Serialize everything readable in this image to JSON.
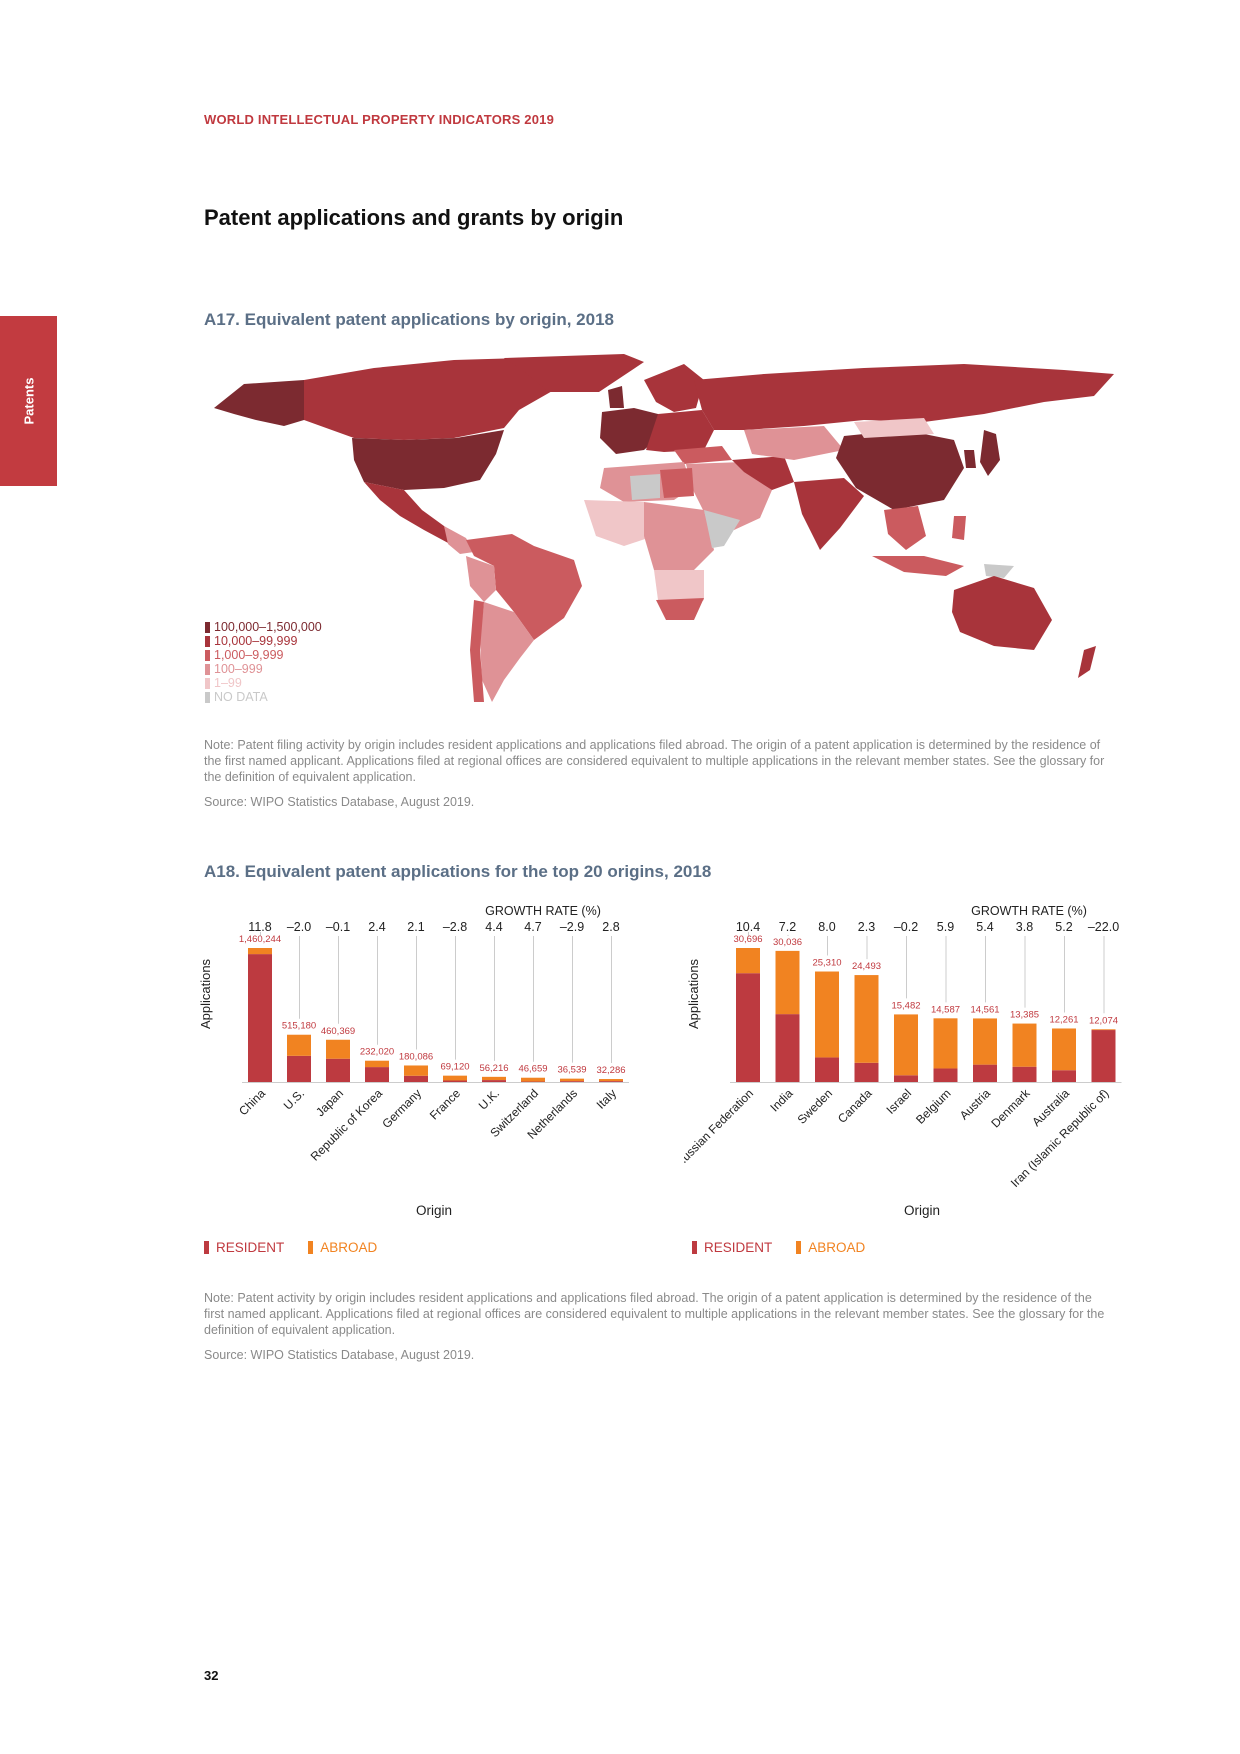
{
  "header": {
    "running_title": "WORLD INTELLECTUAL PROPERTY INDICATORS 2019",
    "side_tab": "Patents"
  },
  "section_title": "Patent applications and grants by origin",
  "map_figure": {
    "title": "A17. Equivalent patent applications by origin, 2018",
    "legend": [
      {
        "label": "100,000–1,500,000",
        "color": "#7c2a30"
      },
      {
        "label": "10,000–99,999",
        "color": "#a8343b"
      },
      {
        "label": "1,000–9,999",
        "color": "#cb5b5f"
      },
      {
        "label": "100–999",
        "color": "#df9296"
      },
      {
        "label": "1–99",
        "color": "#f0c6c8"
      },
      {
        "label": "NO DATA",
        "color": "#c9c9c9"
      }
    ],
    "note": "Note: Patent filing activity by origin includes resident applications and applications filed abroad. The origin of a patent application is determined by the residence of the first named applicant. Applications filed at regional offices are considered equivalent to multiple applications in the relevant member states. See the glossary for the definition of equivalent application.",
    "source": "Source: WIPO Statistics Database, August 2019."
  },
  "bars_figure": {
    "title": "A18. Equivalent patent applications for the top 20 origins, 2018",
    "note": "Note: Patent activity by origin includes resident applications and applications filed abroad. The origin of a patent application is determined by the residence of the first named applicant. Applications filed at regional offices are considered equivalent to multiple applications in the relevant member states. See the glossary for the definition of equivalent application.",
    "source": "Source: WIPO Statistics Database, August 2019.",
    "legend": {
      "resident": "RESIDENT",
      "abroad": "ABROAD"
    }
  },
  "chart_data": [
    {
      "type": "bar",
      "stacked": true,
      "xlabel": "Origin",
      "ylabel": "Applications",
      "growth_label": "GROWTH RATE (%)",
      "categories": [
        "China",
        "U.S.",
        "Japan",
        "Republic of Korea",
        "Germany",
        "France",
        "U.K.",
        "Switzerland",
        "Netherlands",
        "Italy"
      ],
      "totals": [
        "1,460,244",
        "515,180",
        "460,369",
        "232,020",
        "180,086",
        "69,120",
        "56,216",
        "46,659",
        "36,539",
        "32,286"
      ],
      "total_values": [
        1460244,
        515180,
        460369,
        232020,
        180086,
        69120,
        56216,
        46659,
        36539,
        32286
      ],
      "growth": [
        "11.8",
        "–2.0",
        "–0.1",
        "2.4",
        "2.1",
        "–2.8",
        "4.4",
        "4.7",
        "–2.9",
        "2.8"
      ],
      "series": [
        {
          "name": "RESIDENT",
          "color": "#bd3a40",
          "values": [
            1393815,
            285095,
            253630,
            162561,
            67895,
            16222,
            20941,
            5000,
            9520,
            9800
          ]
        },
        {
          "name": "ABROAD",
          "color": "#f18321",
          "values": [
            66429,
            230085,
            206739,
            69459,
            112191,
            52898,
            35275,
            41659,
            27019,
            22486
          ]
        }
      ]
    },
    {
      "type": "bar",
      "stacked": true,
      "xlabel": "Origin",
      "ylabel": "Applications",
      "growth_label": "GROWTH RATE (%)",
      "categories": [
        "Russian Federation",
        "India",
        "Sweden",
        "Canada",
        "Israel",
        "Belgium",
        "Austria",
        "Denmark",
        "Australia",
        "Iran (Islamic Republic of)"
      ],
      "totals": [
        "30,696",
        "30,036",
        "25,310",
        "24,493",
        "15,482",
        "14,587",
        "14,561",
        "13,385",
        "12,261",
        "12,074"
      ],
      "total_values": [
        30696,
        30036,
        25310,
        24493,
        15482,
        14587,
        14561,
        13385,
        12261,
        12074
      ],
      "growth": [
        "10.4",
        "7.2",
        "8.0",
        "2.3",
        "–0.2",
        "5.9",
        "5.4",
        "3.8",
        "5.2",
        "–22.0"
      ],
      "series": [
        {
          "name": "RESIDENT",
          "color": "#bd3a40",
          "values": [
            24926,
            15550,
            5630,
            4400,
            1540,
            3100,
            3976,
            3500,
            2700,
            11900
          ]
        },
        {
          "name": "ABROAD",
          "color": "#f18321",
          "values": [
            5770,
            14486,
            19680,
            20093,
            13942,
            11487,
            10585,
            9885,
            9561,
            174
          ]
        }
      ]
    }
  ],
  "footer": {
    "page_number": "32"
  }
}
